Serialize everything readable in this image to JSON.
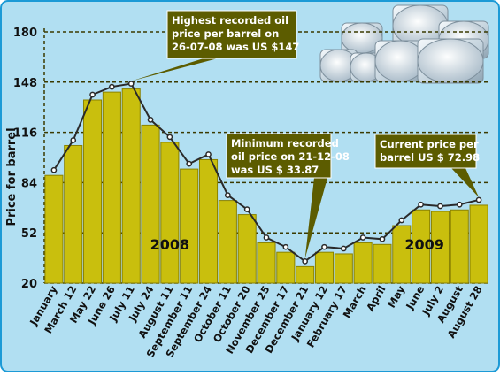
{
  "chart_data": {
    "type": "bar",
    "ylabel": "Price for barrel",
    "ylim": [
      20,
      180
    ],
    "yticks": [
      20,
      52,
      84,
      116,
      148,
      180
    ],
    "grid": true,
    "categories": [
      "January",
      "March 12",
      "May 22",
      "June 26",
      "July 11",
      "July 24",
      "August 11",
      "September 11",
      "September 24",
      "October 11",
      "October 20",
      "November 25",
      "December 17",
      "December 21",
      "January 12",
      "February 17",
      "March",
      "April",
      "May",
      "June",
      "July 2",
      "August",
      "August 28"
    ],
    "x_tick_labels": [
      "January",
      "March 12",
      "May 22",
      "June 26",
      "July 11",
      "July 24",
      "August 11",
      "September 11",
      "September 24",
      "October 11",
      "October 20",
      "November 25",
      "December 17",
      "December 21",
      "January 12",
      "February 17",
      "March",
      "April",
      "May",
      "June",
      "July 2",
      "August",
      "August 28"
    ],
    "values": [
      92,
      111,
      140,
      145,
      147,
      124,
      113,
      96,
      102,
      76,
      67,
      49,
      43,
      33.87,
      43,
      42,
      49,
      48,
      60,
      70,
      69,
      70,
      72.98
    ],
    "year_labels": [
      "2008",
      "2009"
    ],
    "annotations": [
      {
        "lines": [
          "Highest recorded oil",
          "price per barrel on",
          "26-07-08 was US $147"
        ],
        "point_index": 4
      },
      {
        "lines": [
          "Minimum recorded",
          "oil price on 21-12-08",
          "was US $ 33.87"
        ],
        "point_index": 13
      },
      {
        "lines": [
          "Current price per",
          "barrel US $ 72.98"
        ],
        "point_index": 22
      }
    ],
    "colors": {
      "background": "#b1dff2",
      "border": "#1c9ad6",
      "bar": "#c9bf0d",
      "bar_edge": "#8a8200",
      "line": "#2a2a2a",
      "grid": "#3a3a00",
      "callout": "#5c5c00",
      "callout_text": "#ffffff"
    }
  }
}
